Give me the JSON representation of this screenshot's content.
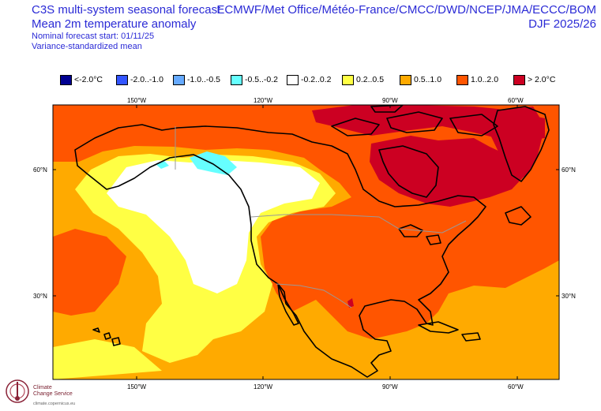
{
  "title": {
    "line1": "C3S multi-system seasonal forecast",
    "line2": "Mean 2m temperature anomaly",
    "line3": "Nominal forecast start: 01/11/25",
    "line4": "Variance-standardized mean",
    "systems": "ECMWF/Met Office/Météo-France/CMCC/DWD/NCEP/JMA/ECCC/BOM",
    "season": "DJF 2025/26"
  },
  "legend": [
    {
      "label": "<-2.0°C",
      "color": "#000091"
    },
    {
      "label": "-2.0..-1.0",
      "color": "#3355ff"
    },
    {
      "label": "-1.0..-0.5",
      "color": "#66aaff"
    },
    {
      "label": "-0.5..-0.2",
      "color": "#66ffff"
    },
    {
      "label": "-0.2..0.2",
      "color": "#ffffff"
    },
    {
      "label": "0.2..0.5",
      "color": "#ffff44"
    },
    {
      "label": "0.5..1.0",
      "color": "#ffaa00"
    },
    {
      "label": "1.0..2.0",
      "color": "#ff5500"
    },
    {
      "label": "> 2.0°C",
      "color": "#cc0022"
    }
  ],
  "axes": {
    "lon_ticks": [
      "150°W",
      "120°W",
      "90°W",
      "60°W"
    ],
    "lat_ticks": [
      "60°N",
      "30°N"
    ]
  },
  "logo": {
    "name_line1": "Climate",
    "name_line2": "Change Service",
    "url": "climate.copernicus.eu"
  }
}
